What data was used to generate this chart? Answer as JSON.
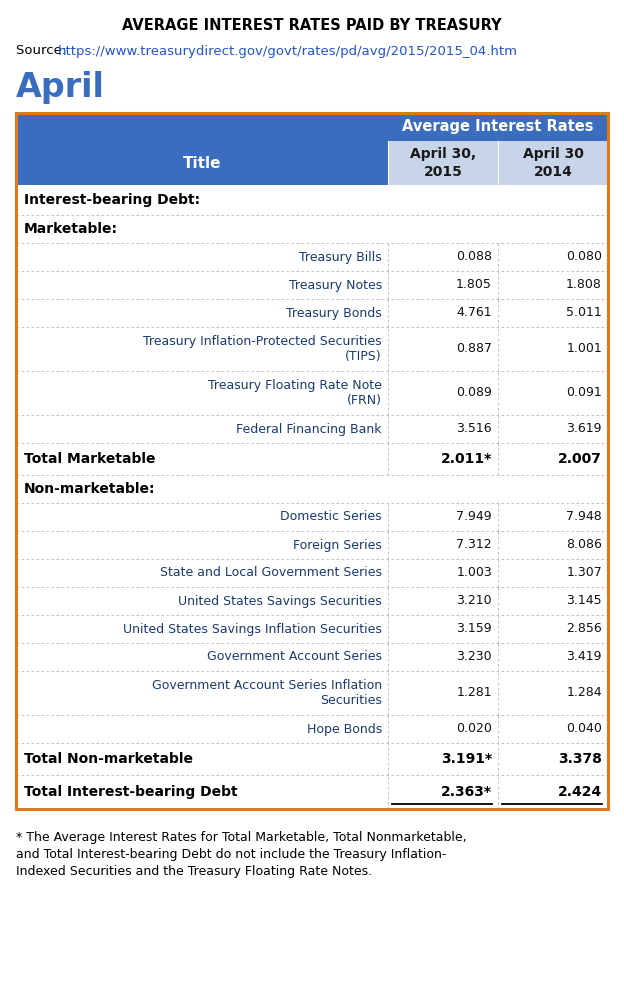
{
  "title": "AVERAGE INTEREST RATES PAID BY TREASURY",
  "source_text": "Source: ",
  "source_url": "https://www.treasurydirect.gov/govt/rates/pd/avg/2015/2015_04.htm",
  "month_label": "April",
  "col_header_title": "Title",
  "col_header_1": "April 30,\n2015",
  "col_header_2": "April 30\n2014",
  "col_group_header": "Average Interest Rates",
  "header_bg": "#3b6dbf",
  "header_sub_bg": "#c8d4e8",
  "border_color": "#e07820",
  "divider_color": "#b8b8b8",
  "rows": [
    {
      "label": "Interest-bearing Debt:",
      "val1": "",
      "val2": "",
      "type": "section"
    },
    {
      "label": "Marketable:",
      "val1": "",
      "val2": "",
      "type": "subsection"
    },
    {
      "label": "Treasury Bills",
      "val1": "0.088",
      "val2": "0.080",
      "type": "data"
    },
    {
      "label": "Treasury Notes",
      "val1": "1.805",
      "val2": "1.808",
      "type": "data"
    },
    {
      "label": "Treasury Bonds",
      "val1": "4.761",
      "val2": "5.011",
      "type": "data"
    },
    {
      "label": "Treasury Inflation-Protected Securities\n(TIPS)",
      "val1": "0.887",
      "val2": "1.001",
      "type": "data"
    },
    {
      "label": "Treasury Floating Rate Note\n(FRN)",
      "val1": "0.089",
      "val2": "0.091",
      "type": "data"
    },
    {
      "label": "Federal Financing Bank",
      "val1": "3.516",
      "val2": "3.619",
      "type": "data"
    },
    {
      "label": "Total Marketable",
      "val1": "2.011*",
      "val2": "2.007",
      "type": "total"
    },
    {
      "label": "Non-marketable:",
      "val1": "",
      "val2": "",
      "type": "subsection"
    },
    {
      "label": "Domestic Series",
      "val1": "7.949",
      "val2": "7.948",
      "type": "data"
    },
    {
      "label": "Foreign Series",
      "val1": "7.312",
      "val2": "8.086",
      "type": "data"
    },
    {
      "label": "State and Local Government Series",
      "val1": "1.003",
      "val2": "1.307",
      "type": "data"
    },
    {
      "label": "United States Savings Securities",
      "val1": "3.210",
      "val2": "3.145",
      "type": "data"
    },
    {
      "label": "United States Savings Inflation Securities",
      "val1": "3.159",
      "val2": "2.856",
      "type": "data"
    },
    {
      "label": "Government Account Series",
      "val1": "3.230",
      "val2": "3.419",
      "type": "data"
    },
    {
      "label": "Government Account Series Inflation\nSecurities",
      "val1": "1.281",
      "val2": "1.284",
      "type": "data"
    },
    {
      "label": "Hope Bonds",
      "val1": "0.020",
      "val2": "0.040",
      "type": "data"
    },
    {
      "label": "Total Non-marketable",
      "val1": "3.191*",
      "val2": "3.378",
      "type": "total"
    },
    {
      "label": "Total Interest-bearing Debt",
      "val1": "2.363*",
      "val2": "2.424",
      "type": "grandtotal"
    }
  ],
  "footnote": "* The Average Interest Rates for Total Marketable, Total Nonmarketable,\nand Total Interest-bearing Debt do not include the Treasury Inflation-\nIndexed Securities and the Treasury Floating Rate Notes.",
  "background_color": "#ffffff"
}
